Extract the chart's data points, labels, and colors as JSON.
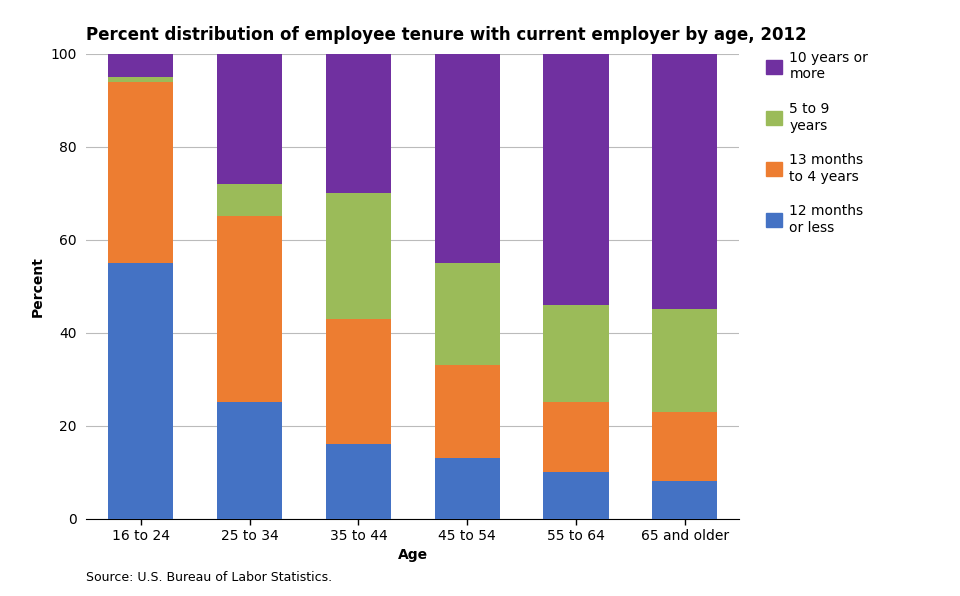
{
  "title": "Percent distribution of employee tenure with current employer by age, 2012",
  "xlabel": "Age",
  "ylabel": "Percent",
  "source": "Source: U.S. Bureau of Labor Statistics.",
  "categories": [
    "16 to 24",
    "25 to 34",
    "35 to 44",
    "45 to 54",
    "55 to 64",
    "65 and older"
  ],
  "series": {
    "12 months\nor less": [
      55,
      25,
      16,
      13,
      10,
      8
    ],
    "13 months\nto 4 years": [
      39,
      40,
      27,
      20,
      15,
      15
    ],
    "5 to 9\nyears": [
      1,
      7,
      27,
      22,
      21,
      22
    ],
    "10 years or\nmore": [
      5,
      28,
      30,
      45,
      54,
      55
    ]
  },
  "colors": {
    "12 months\nor less": "#4472C4",
    "13 months\nto 4 years": "#ED7D31",
    "5 to 9\nyears": "#9BBB59",
    "10 years or\nmore": "#7030A0"
  },
  "bar_order": [
    "12 months\nor less",
    "13 months\nto 4 years",
    "5 to 9\nyears",
    "10 years or\nmore"
  ],
  "legend_order": [
    "10 years or\nmore",
    "5 to 9\nyears",
    "13 months\nto 4 years",
    "12 months\nor less"
  ],
  "ylim": [
    0,
    100
  ],
  "yticks": [
    0,
    20,
    40,
    60,
    80,
    100
  ],
  "background_color": "#FFFFFF",
  "title_fontsize": 12,
  "axis_label_fontsize": 10,
  "tick_fontsize": 10,
  "legend_fontsize": 10,
  "source_fontsize": 9,
  "bar_width": 0.6
}
